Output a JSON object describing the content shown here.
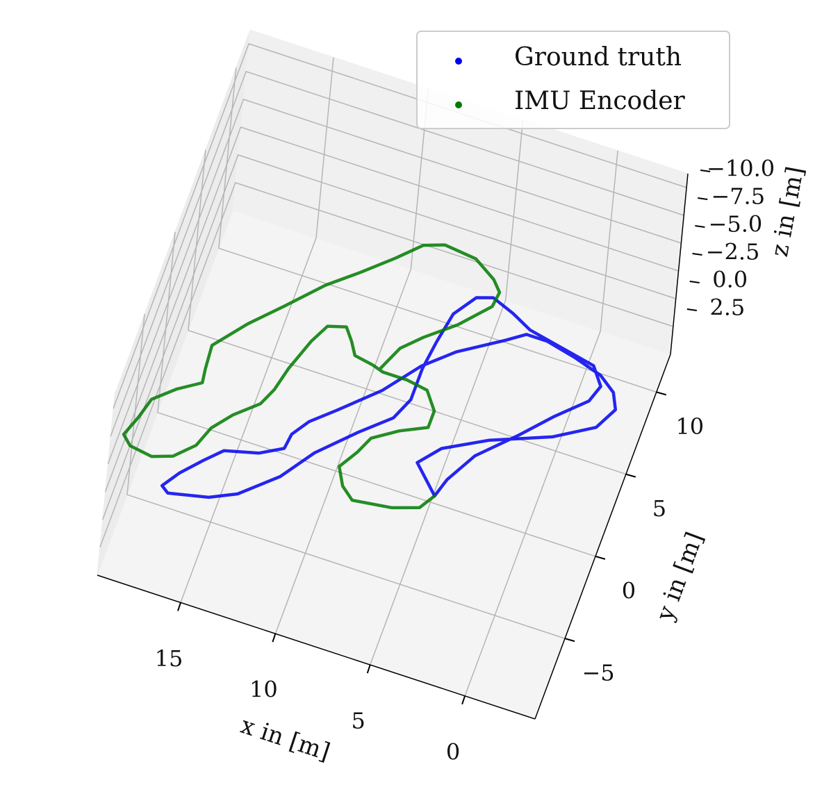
{
  "chart_data": {
    "type": "line3d",
    "xlabel": "x in [m]",
    "ylabel": "y in [m]",
    "zlabel": "z in [m]",
    "xlim": [
      -3.7,
      19.4
    ],
    "ylim": [
      -9.9,
      12.3
    ],
    "zlim": [
      5,
      -11.25
    ],
    "xticks": [
      0,
      5,
      10,
      15
    ],
    "yticks": [
      {
        "value": -5,
        "label": "−5"
      },
      0,
      5,
      10
    ],
    "zticks": [
      {
        "value": -10,
        "label": "−10.0"
      },
      {
        "value": -7.5,
        "label": "−7.5"
      },
      {
        "value": -5,
        "label": "−5.0"
      },
      {
        "value": -2.5,
        "label": "−2.5"
      },
      {
        "value": 0,
        "label": "0.0"
      },
      2.5
    ],
    "grid": true,
    "legend_corner": "upper right",
    "series": [
      {
        "name": "Ground truth",
        "color": "#0000ee",
        "x": [
          4.2,
          5.6,
          4.7,
          2.6,
          -0.3,
          -2.2,
          -2.8,
          -2.4,
          -1.5,
          0.0,
          1.6,
          2.7,
          3.6,
          5.7,
          7.1,
          8.5,
          10.3,
          11.4,
          12.0,
          12.1,
          13.2,
          14.9,
          15.7,
          16.6,
          17.2,
          16.8,
          14.8,
          13.5,
          11.8,
          10.6,
          8.9,
          7.5,
          7.0,
          7.0,
          6.8,
          6.5,
          5.7,
          4.9,
          3.7,
          2.6,
          0.8,
          -1.0,
          -1.7,
          -1.4,
          0.0,
          1.3,
          3.0,
          3.9,
          4.2
        ],
        "y": [
          -2.7,
          -1.2,
          0.0,
          1.3,
          2.6,
          3.9,
          5.2,
          6.1,
          6.8,
          7.3,
          7.7,
          7.7,
          7.0,
          5.5,
          4.1,
          2.1,
          0.2,
          -0.9,
          -1.9,
          -2.8,
          -3.5,
          -4.0,
          -4.9,
          -6.0,
          -7.0,
          -7.3,
          -6.8,
          -6.1,
          -4.4,
          -2.5,
          -0.6,
          0.8,
          2.1,
          4.0,
          5.7,
          7.5,
          8.8,
          9.1,
          8.6,
          8.0,
          7.6,
          7.2,
          6.2,
          5.2,
          3.7,
          2.1,
          0.2,
          -1.6,
          -2.7
        ],
        "z": [
          0,
          0,
          0,
          0,
          0,
          0,
          0,
          0,
          0,
          0,
          0,
          0,
          0,
          0,
          0,
          0,
          0,
          0,
          0,
          0,
          0,
          0,
          0,
          0,
          0,
          0,
          0,
          0,
          0,
          0,
          0,
          0,
          0,
          0,
          0,
          0,
          0,
          0,
          0,
          0,
          0,
          0,
          0,
          0,
          0,
          0,
          0,
          0,
          0
        ]
      },
      {
        "name": "IMU Encoder",
        "color": "#007a00",
        "x": [
          9.0,
          8.4,
          7.5,
          6.1,
          4.8,
          4.7,
          5.2,
          6.4,
          8.1,
          9.1,
          10.2,
          11.6,
          13.0,
          14.6,
          16.0,
          17.3,
          17.2,
          17.1,
          18.2,
          19.2,
          19.5,
          19.9,
          19.4,
          18.2,
          17.2,
          16.3,
          15.9,
          15.1,
          14.0,
          13.6,
          13.3,
          12.7,
          12.2,
          11.3,
          10.8,
          10.4,
          9.4,
          8.8,
          7.5,
          6.4,
          5.7,
          5.7,
          7.0,
          8.2,
          8.6,
          9.2,
          8.7,
          8.0,
          6.0,
          4.7,
          4.2
        ],
        "y": [
          3.2,
          4.7,
          5.7,
          7.0,
          8.6,
          9.5,
          10.1,
          10.9,
          11.1,
          10.7,
          9.5,
          8.1,
          6.8,
          4.9,
          3.3,
          1.5,
          0.1,
          -0.7,
          -1.5,
          -2.5,
          -3.7,
          -4.9,
          -5.4,
          -5.6,
          -5.2,
          -4.2,
          -3.0,
          -1.9,
          -0.8,
          0.2,
          1.6,
          3.5,
          4.6,
          4.9,
          4.2,
          3.5,
          3.3,
          3.1,
          3.1,
          2.9,
          1.9,
          0.9,
          0.2,
          -0.7,
          -1.7,
          -2.8,
          -3.8,
          -4.4,
          -4.1,
          -3.6,
          -2.7
        ],
        "z": [
          0,
          0,
          0,
          0,
          0,
          0,
          0,
          0,
          0,
          0,
          0,
          0,
          0,
          0,
          0,
          0,
          0,
          0,
          0,
          0,
          0,
          0,
          0,
          0,
          0,
          0,
          0,
          0,
          0,
          0,
          0,
          0,
          0,
          0,
          0,
          0,
          0,
          0,
          0,
          0,
          0,
          0,
          0,
          0,
          0,
          0,
          0,
          0,
          0,
          0,
          0
        ]
      }
    ]
  }
}
